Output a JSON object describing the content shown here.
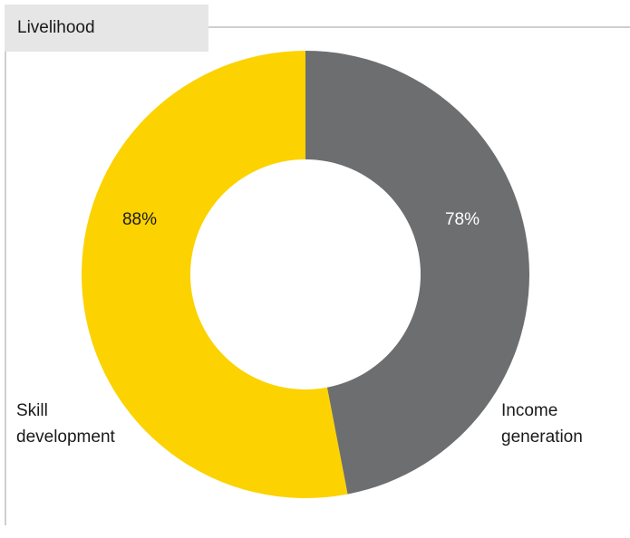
{
  "header": {
    "title": "Livelihood"
  },
  "colors": {
    "income": "#6d6e70",
    "skill": "#fcd200",
    "header_bg": "#e6e6e6",
    "rule": "#cfcfcf"
  },
  "chart_data": {
    "type": "pie",
    "donut": true,
    "title": "",
    "slices": [
      {
        "name": "Income generation",
        "label_lines": [
          "Income",
          "generation"
        ],
        "value": 78,
        "value_label": "78%"
      },
      {
        "name": "Skill development",
        "label_lines": [
          "Skill",
          "development"
        ],
        "value": 88,
        "value_label": "88%"
      }
    ]
  }
}
